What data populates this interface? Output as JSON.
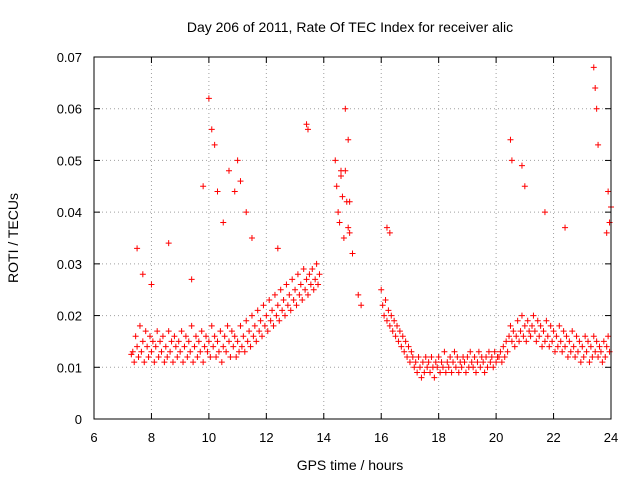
{
  "chart_data": {
    "type": "scatter",
    "title": "Day 206 of 2011, Rate Of TEC Index for receiver alic",
    "xlabel": "GPS time / hours",
    "ylabel": "ROTI / TECUs",
    "xlim": [
      6,
      24
    ],
    "ylim": [
      0,
      0.07
    ],
    "x_ticks": [
      6,
      8,
      10,
      12,
      14,
      16,
      18,
      20,
      22,
      24
    ],
    "x_tick_labels": [
      "6",
      "8",
      "10",
      "12",
      "14",
      "16",
      "18",
      "20",
      "22",
      "24"
    ],
    "y_ticks": [
      0,
      0.01,
      0.02,
      0.03,
      0.04,
      0.05,
      0.06,
      0.07
    ],
    "y_tick_labels": [
      "0",
      "0.01",
      "0.02",
      "0.03",
      "0.04",
      "0.05",
      "0.06",
      "0.07"
    ],
    "grid": true,
    "legend": "none",
    "marker": "+",
    "series": [
      {
        "color": "#ff0000",
        "x": [
          7.3,
          7.35,
          7.4,
          7.45,
          7.5,
          7.55,
          7.6,
          7.65,
          7.7,
          7.75,
          7.8,
          7.85,
          7.9,
          7.95,
          8.0,
          8.05,
          8.1,
          8.15,
          8.2,
          8.25,
          8.3,
          8.35,
          8.4,
          8.45,
          8.5,
          8.55,
          8.6,
          8.65,
          8.7,
          8.75,
          8.8,
          8.85,
          8.9,
          8.95,
          9.0,
          9.05,
          9.1,
          9.15,
          9.2,
          9.25,
          9.3,
          9.35,
          9.4,
          9.45,
          9.5,
          9.55,
          9.6,
          9.65,
          9.7,
          9.75,
          9.8,
          9.85,
          9.9,
          9.95,
          10.0,
          10.05,
          10.1,
          10.15,
          10.2,
          10.25,
          10.3,
          10.35,
          10.4,
          10.45,
          10.5,
          10.55,
          10.6,
          10.65,
          10.7,
          10.75,
          10.8,
          10.85,
          10.9,
          10.95,
          11.0,
          11.05,
          11.1,
          11.15,
          11.2,
          11.25,
          11.3,
          11.35,
          11.4,
          11.45,
          11.5,
          11.55,
          11.6,
          11.65,
          11.7,
          11.75,
          11.8,
          11.85,
          11.9,
          11.95,
          12.0,
          12.05,
          12.1,
          12.15,
          12.2,
          12.25,
          12.3,
          12.35,
          12.4,
          12.45,
          12.5,
          12.55,
          12.6,
          12.65,
          12.7,
          12.75,
          12.8,
          12.85,
          12.9,
          12.95,
          13.0,
          13.05,
          13.1,
          13.15,
          13.2,
          13.25,
          13.3,
          13.35,
          13.4,
          13.45,
          13.5,
          13.55,
          13.6,
          13.65,
          13.7,
          13.75,
          13.8,
          13.85,
          14.4,
          14.45,
          14.5,
          14.55,
          14.6,
          14.65,
          14.7,
          14.75,
          14.8,
          14.85,
          14.9,
          15.0,
          15.2,
          15.3,
          16.0,
          16.05,
          16.1,
          16.15,
          16.2,
          16.25,
          16.3,
          16.35,
          16.4,
          16.45,
          16.5,
          16.55,
          16.6,
          16.65,
          16.7,
          16.75,
          16.8,
          16.85,
          16.9,
          16.95,
          17.0,
          17.05,
          17.1,
          17.15,
          17.2,
          17.25,
          17.3,
          17.35,
          17.4,
          17.45,
          17.5,
          17.55,
          17.6,
          17.65,
          17.7,
          17.75,
          17.8,
          17.85,
          17.9,
          17.95,
          18.0,
          18.05,
          18.1,
          18.15,
          18.2,
          18.25,
          18.3,
          18.35,
          18.4,
          18.45,
          18.5,
          18.55,
          18.6,
          18.65,
          18.7,
          18.75,
          18.8,
          18.85,
          18.9,
          18.95,
          19.0,
          19.05,
          19.1,
          19.15,
          19.2,
          19.25,
          19.3,
          19.35,
          19.4,
          19.45,
          19.5,
          19.55,
          19.6,
          19.65,
          19.7,
          19.75,
          19.8,
          19.85,
          19.9,
          19.95,
          20.0,
          20.05,
          20.1,
          20.15,
          20.2,
          20.25,
          20.3,
          20.35,
          20.4,
          20.45,
          20.5,
          20.55,
          20.6,
          20.65,
          20.7,
          20.75,
          20.8,
          20.85,
          20.9,
          20.95,
          21.0,
          21.05,
          21.1,
          21.15,
          21.2,
          21.25,
          21.3,
          21.35,
          21.4,
          21.45,
          21.5,
          21.55,
          21.6,
          21.65,
          21.7,
          21.75,
          21.8,
          21.85,
          21.9,
          21.95,
          22.0,
          22.05,
          22.1,
          22.15,
          22.2,
          22.25,
          22.3,
          22.35,
          22.4,
          22.45,
          22.5,
          22.55,
          22.6,
          22.65,
          22.7,
          22.75,
          22.8,
          22.85,
          22.9,
          22.95,
          23.0,
          23.05,
          23.1,
          23.15,
          23.2,
          23.25,
          23.3,
          23.35,
          23.4,
          23.45,
          23.5,
          23.55,
          23.6,
          23.65,
          23.7,
          23.75,
          23.8,
          23.85,
          23.9,
          23.95,
          7.5,
          7.7,
          8.0,
          8.6,
          9.4,
          9.8,
          10.0,
          10.1,
          10.2,
          10.3,
          10.5,
          10.7,
          10.9,
          11.0,
          11.1,
          11.3,
          11.5,
          12.4,
          13.4,
          13.45,
          14.6,
          14.75,
          14.85,
          14.9,
          16.2,
          16.3,
          20.5,
          20.55,
          20.9,
          21.0,
          21.7,
          22.4,
          23.4,
          23.45,
          23.5,
          23.55,
          23.9,
          24.0,
          23.95,
          23.85
        ],
        "y": [
          0.0125,
          0.013,
          0.011,
          0.016,
          0.014,
          0.012,
          0.018,
          0.013,
          0.015,
          0.011,
          0.017,
          0.014,
          0.012,
          0.016,
          0.013,
          0.015,
          0.011,
          0.014,
          0.017,
          0.012,
          0.015,
          0.013,
          0.016,
          0.011,
          0.014,
          0.012,
          0.017,
          0.013,
          0.015,
          0.011,
          0.016,
          0.014,
          0.012,
          0.015,
          0.013,
          0.017,
          0.011,
          0.014,
          0.016,
          0.012,
          0.015,
          0.013,
          0.018,
          0.011,
          0.014,
          0.016,
          0.012,
          0.015,
          0.013,
          0.017,
          0.011,
          0.014,
          0.016,
          0.013,
          0.015,
          0.012,
          0.018,
          0.014,
          0.016,
          0.012,
          0.015,
          0.013,
          0.017,
          0.011,
          0.014,
          0.016,
          0.013,
          0.018,
          0.015,
          0.012,
          0.017,
          0.014,
          0.016,
          0.012,
          0.015,
          0.013,
          0.018,
          0.014,
          0.016,
          0.013,
          0.019,
          0.015,
          0.017,
          0.014,
          0.02,
          0.016,
          0.018,
          0.015,
          0.021,
          0.017,
          0.019,
          0.016,
          0.022,
          0.018,
          0.02,
          0.017,
          0.023,
          0.019,
          0.021,
          0.018,
          0.024,
          0.02,
          0.022,
          0.019,
          0.025,
          0.021,
          0.023,
          0.02,
          0.026,
          0.022,
          0.024,
          0.021,
          0.027,
          0.023,
          0.025,
          0.022,
          0.028,
          0.024,
          0.026,
          0.023,
          0.029,
          0.025,
          0.027,
          0.024,
          0.028,
          0.026,
          0.029,
          0.025,
          0.027,
          0.03,
          0.026,
          0.028,
          0.05,
          0.045,
          0.04,
          0.038,
          0.047,
          0.043,
          0.035,
          0.048,
          0.042,
          0.037,
          0.036,
          0.032,
          0.024,
          0.022,
          0.025,
          0.022,
          0.02,
          0.023,
          0.019,
          0.021,
          0.018,
          0.02,
          0.017,
          0.019,
          0.016,
          0.018,
          0.015,
          0.017,
          0.014,
          0.016,
          0.013,
          0.015,
          0.012,
          0.014,
          0.011,
          0.013,
          0.012,
          0.01,
          0.011,
          0.009,
          0.012,
          0.01,
          0.008,
          0.011,
          0.009,
          0.012,
          0.01,
          0.011,
          0.009,
          0.012,
          0.01,
          0.008,
          0.011,
          0.01,
          0.012,
          0.009,
          0.011,
          0.01,
          0.013,
          0.009,
          0.011,
          0.01,
          0.012,
          0.009,
          0.011,
          0.013,
          0.01,
          0.012,
          0.009,
          0.011,
          0.01,
          0.012,
          0.011,
          0.009,
          0.012,
          0.01,
          0.013,
          0.011,
          0.01,
          0.012,
          0.009,
          0.011,
          0.013,
          0.01,
          0.012,
          0.011,
          0.009,
          0.012,
          0.01,
          0.013,
          0.011,
          0.012,
          0.01,
          0.013,
          0.011,
          0.012,
          0.012,
          0.013,
          0.011,
          0.014,
          0.012,
          0.015,
          0.013,
          0.016,
          0.018,
          0.015,
          0.017,
          0.014,
          0.016,
          0.019,
          0.015,
          0.017,
          0.02,
          0.016,
          0.018,
          0.015,
          0.019,
          0.017,
          0.016,
          0.018,
          0.02,
          0.017,
          0.015,
          0.019,
          0.016,
          0.018,
          0.014,
          0.017,
          0.015,
          0.019,
          0.016,
          0.014,
          0.018,
          0.015,
          0.017,
          0.013,
          0.016,
          0.014,
          0.018,
          0.015,
          0.013,
          0.017,
          0.014,
          0.016,
          0.012,
          0.015,
          0.013,
          0.017,
          0.014,
          0.012,
          0.016,
          0.013,
          0.015,
          0.011,
          0.014,
          0.012,
          0.016,
          0.013,
          0.015,
          0.011,
          0.014,
          0.012,
          0.016,
          0.013,
          0.015,
          0.012,
          0.014,
          0.013,
          0.011,
          0.015,
          0.012,
          0.014,
          0.016,
          0.013,
          0.033,
          0.028,
          0.026,
          0.034,
          0.027,
          0.045,
          0.062,
          0.056,
          0.053,
          0.044,
          0.038,
          0.048,
          0.044,
          0.05,
          0.046,
          0.04,
          0.035,
          0.033,
          0.057,
          0.056,
          0.048,
          0.06,
          0.054,
          0.042,
          0.037,
          0.036,
          0.054,
          0.05,
          0.049,
          0.045,
          0.04,
          0.037,
          0.068,
          0.064,
          0.06,
          0.053,
          0.044,
          0.041,
          0.038,
          0.036
        ]
      }
    ]
  }
}
